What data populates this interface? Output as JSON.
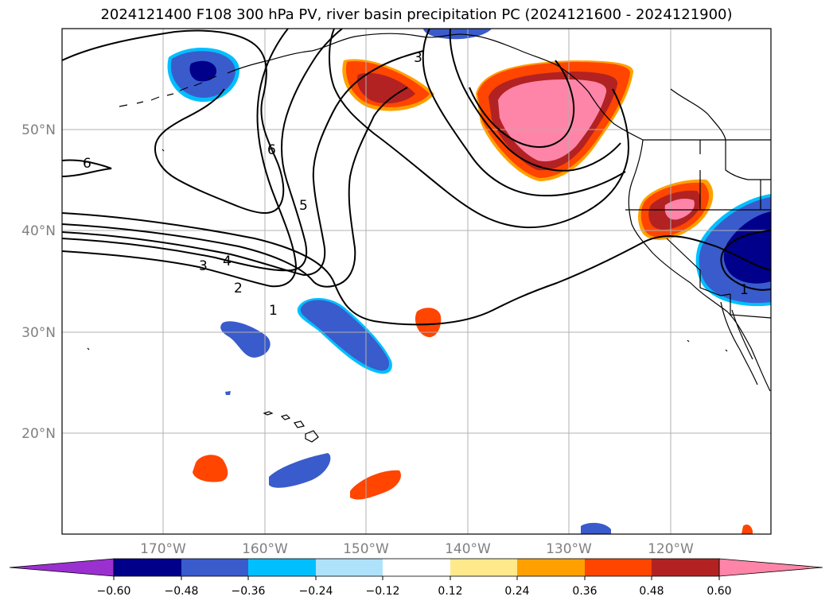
{
  "title": "2024121400 F108 300 hPa PV, river basin precipitation PC (2024121600 - 2024121900)",
  "map": {
    "lat_ticks": [
      {
        "value": 50,
        "label": "50°N"
      },
      {
        "value": 40,
        "label": "40°N"
      },
      {
        "value": 30,
        "label": "30°N"
      },
      {
        "value": 20,
        "label": "20°N"
      }
    ],
    "lon_ticks": [
      {
        "value": -170,
        "label": "170°W"
      },
      {
        "value": -160,
        "label": "160°W"
      },
      {
        "value": -150,
        "label": "150°W"
      },
      {
        "value": -140,
        "label": "140°W"
      },
      {
        "value": -130,
        "label": "130°W"
      },
      {
        "value": -120,
        "label": "120°W"
      }
    ],
    "pv_contour_labels": [
      "1",
      "2",
      "3",
      "4",
      "5",
      "6",
      "3",
      "6",
      "1"
    ],
    "grid": true
  },
  "colorbar": {
    "tick_labels": [
      "−0.60",
      "−0.48",
      "−0.36",
      "−0.24",
      "−0.12",
      "0.12",
      "0.24",
      "0.36",
      "0.48",
      "0.60"
    ],
    "colors": [
      "#9b30d0",
      "#00008b",
      "#3a5bcc",
      "#00bfff",
      "#aee2fa",
      "#ffffff",
      "#ffe98a",
      "#ffa000",
      "#ff4500",
      "#b22222",
      "#ff85a8"
    ]
  },
  "colors": {
    "strong_negative": "#00008b",
    "negative": "#3a5bcc",
    "weak_negative": "#00bfff",
    "positive": "#ff4500",
    "strong_positive": "#b22222",
    "max_positive": "#ff85a8"
  }
}
